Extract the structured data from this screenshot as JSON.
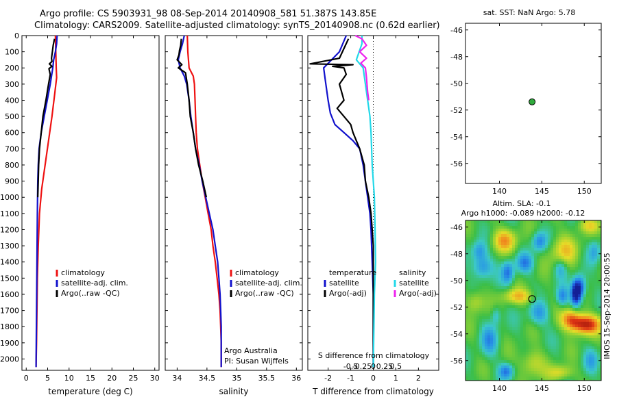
{
  "title": {
    "line1": "Argo profile: CS 5903931_98 08-Sep-2014 20140908_581 51.387S 143.85E",
    "line2": "Climatology: CARS2009. Satellite-adjusted climatology: synTS_20140908.nc (0.62d earlier)"
  },
  "colors": {
    "climatology": "#ee1111",
    "satellite": "#1111cc",
    "argo": "#000000",
    "satellite_salinity": "#22d8e8",
    "argo_salinity": "#ee22ee",
    "marker_fill": "#2faa3c"
  },
  "chart_data": [
    {
      "type": "line",
      "name": "temperature-panel",
      "xlabel": "temperature (deg C)",
      "ylabel": "",
      "xlim": [
        -1,
        31
      ],
      "ylim": [
        2070,
        0
      ],
      "xticks": [
        0,
        5,
        10,
        15,
        20,
        25,
        30
      ],
      "yticks": [
        0,
        100,
        200,
        300,
        400,
        500,
        600,
        700,
        800,
        900,
        1000,
        1100,
        1200,
        1300,
        1400,
        1500,
        1600,
        1700,
        1800,
        1900,
        2000
      ],
      "legend": [
        "climatology",
        "satellite-adj. clim.",
        "Argo(..raw -QC)"
      ],
      "series": [
        {
          "name": "climatology",
          "color_key": "climatology",
          "points": [
            [
              6.8,
              0
            ],
            [
              6.9,
              100
            ],
            [
              7.0,
              200
            ],
            [
              7.1,
              260
            ],
            [
              6.7,
              350
            ],
            [
              6.0,
              500
            ],
            [
              5.2,
              650
            ],
            [
              4.4,
              800
            ],
            [
              3.6,
              950
            ],
            [
              3.1,
              1100
            ],
            [
              2.8,
              1300
            ],
            [
              2.6,
              1500
            ],
            [
              2.5,
              1700
            ],
            [
              2.4,
              1900
            ],
            [
              2.3,
              2050
            ]
          ]
        },
        {
          "name": "satellite-adj. clim.",
          "color_key": "satellite",
          "points": [
            [
              7.2,
              0
            ],
            [
              7.1,
              50
            ],
            [
              6.8,
              100
            ],
            [
              6.4,
              150
            ],
            [
              6.2,
              200
            ],
            [
              5.6,
              300
            ],
            [
              4.9,
              400
            ],
            [
              4.2,
              500
            ],
            [
              3.5,
              600
            ],
            [
              3.0,
              700
            ],
            [
              2.8,
              800
            ],
            [
              2.7,
              900
            ],
            [
              2.6,
              1100
            ],
            [
              2.5,
              1400
            ],
            [
              2.4,
              1700
            ],
            [
              2.3,
              2050
            ]
          ]
        },
        {
          "name": "Argo(..raw -QC)",
          "color_key": "argo",
          "points": [
            [
              6.6,
              20
            ],
            [
              6.3,
              60
            ],
            [
              6.1,
              100
            ],
            [
              5.9,
              140
            ],
            [
              6.0,
              160
            ],
            [
              5.4,
              175
            ],
            [
              6.0,
              190
            ],
            [
              5.3,
              205
            ],
            [
              5.6,
              240
            ],
            [
              5.2,
              300
            ],
            [
              4.6,
              400
            ],
            [
              3.9,
              500
            ],
            [
              3.5,
              600
            ],
            [
              3.1,
              700
            ],
            [
              2.9,
              800
            ],
            [
              2.8,
              900
            ],
            [
              2.7,
              1000
            ]
          ]
        }
      ]
    },
    {
      "type": "line",
      "name": "salinity-panel",
      "xlabel": "salinity",
      "ylabel": "",
      "xlim": [
        33.8,
        36.1
      ],
      "ylim": [
        2070,
        0
      ],
      "xticks": [
        34,
        34.5,
        35,
        35.5,
        36
      ],
      "legend": [
        "climatology",
        "satellite-adj. clim.",
        "Argo(..raw -QC)"
      ],
      "annotation": [
        "Argo Australia",
        "PI: Susan Wijffels"
      ],
      "series": [
        {
          "name": "climatology",
          "color_key": "climatology",
          "points": [
            [
              34.17,
              0
            ],
            [
              34.18,
              100
            ],
            [
              34.2,
              200
            ],
            [
              34.27,
              250
            ],
            [
              34.29,
              300
            ],
            [
              34.3,
              400
            ],
            [
              34.31,
              500
            ],
            [
              34.32,
              600
            ],
            [
              34.34,
              700
            ],
            [
              34.38,
              800
            ],
            [
              34.42,
              900
            ],
            [
              34.47,
              1000
            ],
            [
              34.52,
              1100
            ],
            [
              34.57,
              1200
            ],
            [
              34.6,
              1300
            ],
            [
              34.64,
              1400
            ],
            [
              34.67,
              1500
            ],
            [
              34.7,
              1600
            ],
            [
              34.72,
              1700
            ],
            [
              34.73,
              1800
            ],
            [
              34.74,
              1900
            ],
            [
              34.74,
              2050
            ]
          ]
        },
        {
          "name": "satellite-adj. clim.",
          "color_key": "satellite",
          "points": [
            [
              34.12,
              0
            ],
            [
              34.09,
              50
            ],
            [
              34.05,
              100
            ],
            [
              34.02,
              150
            ],
            [
              34.05,
              200
            ],
            [
              34.12,
              250
            ],
            [
              34.16,
              300
            ],
            [
              34.2,
              400
            ],
            [
              34.23,
              500
            ],
            [
              34.27,
              600
            ],
            [
              34.31,
              700
            ],
            [
              34.37,
              800
            ],
            [
              34.42,
              900
            ],
            [
              34.48,
              1000
            ],
            [
              34.54,
              1100
            ],
            [
              34.6,
              1200
            ],
            [
              34.64,
              1300
            ],
            [
              34.68,
              1400
            ],
            [
              34.7,
              1500
            ],
            [
              34.72,
              1600
            ],
            [
              34.73,
              1700
            ],
            [
              34.74,
              1800
            ],
            [
              34.74,
              1900
            ],
            [
              34.74,
              2050
            ]
          ]
        },
        {
          "name": "Argo(..raw -QC)",
          "color_key": "argo",
          "points": [
            [
              34.07,
              20
            ],
            [
              34.06,
              60
            ],
            [
              34.04,
              90
            ],
            [
              34.03,
              120
            ],
            [
              34.0,
              150
            ],
            [
              34.08,
              180
            ],
            [
              34.02,
              200
            ],
            [
              34.14,
              230
            ],
            [
              34.17,
              300
            ],
            [
              34.2,
              400
            ],
            [
              34.22,
              500
            ],
            [
              34.27,
              600
            ],
            [
              34.31,
              700
            ],
            [
              34.36,
              800
            ],
            [
              34.43,
              900
            ],
            [
              34.49,
              1000
            ]
          ]
        }
      ]
    },
    {
      "type": "line",
      "name": "difference-panel",
      "xlabel": "T difference from climatology",
      "xlabel2": "S difference from climatology",
      "xlim": [
        -2.9,
        2.9
      ],
      "ylim": [
        2070,
        0
      ],
      "xticks": [
        -2,
        -1,
        0,
        1,
        2
      ],
      "xticks2_values": [
        -0.5,
        -0.25,
        0,
        0.25,
        0.5
      ],
      "xticks2_labels": [
        "-0.5",
        "-0.25",
        "0",
        "0.25",
        "0.5"
      ],
      "legend_headers": [
        "temperature",
        "salinity"
      ],
      "legend": [
        "satellite",
        "Argo(-adj)",
        "satellite",
        "Argo(-adj)"
      ],
      "series": [
        {
          "name": "satellite",
          "group": "temperature",
          "color_key": "satellite",
          "points": [
            [
              -1.2,
              0
            ],
            [
              -1.5,
              100
            ],
            [
              -2.2,
              200
            ],
            [
              -2.1,
              300
            ],
            [
              -2.0,
              400
            ],
            [
              -1.9,
              480
            ],
            [
              -1.7,
              550
            ],
            [
              -1.3,
              600
            ],
            [
              -0.9,
              650
            ],
            [
              -0.6,
              700
            ],
            [
              -0.45,
              800
            ],
            [
              -0.25,
              1000
            ],
            [
              -0.15,
              1100
            ],
            [
              -0.1,
              1200
            ],
            [
              -0.05,
              1400
            ],
            [
              0,
              1600
            ],
            [
              0,
              2050
            ]
          ]
        },
        {
          "name": "Argo(-adj)",
          "group": "temperature",
          "color_key": "argo",
          "points": [
            [
              -1.1,
              20
            ],
            [
              -1.3,
              80
            ],
            [
              -1.5,
              140
            ],
            [
              -2.8,
              175
            ],
            [
              -0.9,
              180
            ],
            [
              -1.8,
              190
            ],
            [
              -1.3,
              200
            ],
            [
              -1.2,
              240
            ],
            [
              -1.5,
              300
            ],
            [
              -1.3,
              400
            ],
            [
              -1.6,
              450
            ],
            [
              -1.3,
              500
            ],
            [
              -1.0,
              550
            ],
            [
              -0.9,
              600
            ],
            [
              -0.6,
              700
            ],
            [
              -0.4,
              800
            ],
            [
              -0.35,
              900
            ],
            [
              -0.2,
              1000
            ],
            [
              -0.1,
              1100
            ],
            [
              -0.05,
              1200
            ],
            [
              0,
              1300
            ],
            [
              0,
              2050
            ]
          ]
        },
        {
          "name": "satellite",
          "group": "salinity",
          "color_key": "satellite_salinity",
          "points": [
            [
              -0.5,
              0
            ],
            [
              -0.5,
              50
            ],
            [
              -0.75,
              150
            ],
            [
              -0.45,
              200
            ],
            [
              -0.35,
              300
            ],
            [
              -0.25,
              400
            ],
            [
              -0.15,
              500
            ],
            [
              -0.1,
              600
            ],
            [
              -0.05,
              800
            ],
            [
              0.05,
              1000
            ],
            [
              0.08,
              1200
            ],
            [
              0.1,
              1400
            ],
            [
              0.05,
              1600
            ],
            [
              0,
              2050
            ]
          ]
        },
        {
          "name": "Argo(-adj)",
          "group": "salinity",
          "color_key": "argo_salinity",
          "points": [
            [
              -0.8,
              0
            ],
            [
              -0.5,
              20
            ],
            [
              -0.3,
              60
            ],
            [
              -0.6,
              100
            ],
            [
              -0.3,
              140
            ],
            [
              -0.55,
              170
            ],
            [
              -0.35,
              200
            ],
            [
              -0.3,
              260
            ],
            [
              -0.28,
              300
            ],
            [
              -0.25,
              350
            ],
            [
              -0.2,
              400
            ]
          ]
        }
      ]
    },
    {
      "type": "scatter",
      "name": "location-map",
      "title": "sat. SST: NaN Argo: 5.78",
      "xlim": [
        136,
        152
      ],
      "ylim": [
        -57.5,
        -45.5
      ],
      "xticks": [
        140,
        145,
        150
      ],
      "yticks": [
        -46,
        -48,
        -50,
        -52,
        -54,
        -56
      ],
      "points": [
        {
          "x": 143.85,
          "y": -51.387
        }
      ]
    },
    {
      "type": "heatmap",
      "name": "sla-map",
      "title": "Altim. SLA: -0.1",
      "subtitle": "Argo h1000: -0.089 h2000: -0.12",
      "side_label": "IMOS 15-Sep-2014 20:00:55",
      "xlim": [
        136,
        152
      ],
      "ylim": [
        -57.5,
        -45.5
      ],
      "xticks": [
        140,
        145,
        150
      ],
      "yticks": [
        -46,
        -48,
        -50,
        -52,
        -54,
        -56
      ],
      "marker": {
        "x": 143.85,
        "y": -51.387
      },
      "features": [
        {
          "x": 138.0,
          "y": -49.0,
          "amp": -0.5,
          "sx": 0.8,
          "sy": 0.6
        },
        {
          "x": 137.6,
          "y": -47.8,
          "amp": -0.4,
          "sx": 0.6,
          "sy": 0.5
        },
        {
          "x": 140.6,
          "y": -47.0,
          "amp": 0.55,
          "sx": 1.0,
          "sy": 0.6
        },
        {
          "x": 141.0,
          "y": -49.4,
          "amp": -0.55,
          "sx": 0.5,
          "sy": 0.6
        },
        {
          "x": 142.2,
          "y": -51.2,
          "amp": 0.45,
          "sx": 1.3,
          "sy": 0.4
        },
        {
          "x": 143.0,
          "y": -48.7,
          "amp": -0.45,
          "sx": 0.7,
          "sy": 0.5
        },
        {
          "x": 144.7,
          "y": -47.1,
          "amp": -0.5,
          "sx": 0.6,
          "sy": 0.5
        },
        {
          "x": 144.6,
          "y": -52.5,
          "amp": -0.4,
          "sx": 0.8,
          "sy": 0.6
        },
        {
          "x": 147.6,
          "y": -47.8,
          "amp": 0.4,
          "sx": 1.2,
          "sy": 0.8
        },
        {
          "x": 147.2,
          "y": -49.1,
          "amp": -0.3,
          "sx": 0.5,
          "sy": 0.5
        },
        {
          "x": 147.4,
          "y": -51.2,
          "amp": -0.5,
          "sx": 0.5,
          "sy": 0.5
        },
        {
          "x": 149.0,
          "y": -51.0,
          "amp": -1.0,
          "sx": 0.4,
          "sy": 0.6
        },
        {
          "x": 149.5,
          "y": -50.5,
          "amp": -0.7,
          "sx": 0.5,
          "sy": 0.6
        },
        {
          "x": 150.0,
          "y": -53.3,
          "amp": 1.0,
          "sx": 1.3,
          "sy": 0.5
        },
        {
          "x": 148.4,
          "y": -52.8,
          "amp": 0.55,
          "sx": 0.8,
          "sy": 0.5
        },
        {
          "x": 138.8,
          "y": -54.5,
          "amp": -0.4,
          "sx": 0.7,
          "sy": 0.8
        },
        {
          "x": 137.2,
          "y": -51.6,
          "amp": 0.35,
          "sx": 0.8,
          "sy": 0.6
        },
        {
          "x": 140.8,
          "y": -56.8,
          "amp": -0.5,
          "sx": 0.6,
          "sy": 0.4
        },
        {
          "x": 143.8,
          "y": -56.2,
          "amp": 0.35,
          "sx": 1.0,
          "sy": 0.7
        },
        {
          "x": 147.2,
          "y": -56.9,
          "amp": 0.4,
          "sx": 1.0,
          "sy": 0.4
        },
        {
          "x": 150.8,
          "y": -56.0,
          "amp": -0.3,
          "sx": 0.6,
          "sy": 0.6
        },
        {
          "x": 139.6,
          "y": -52.6,
          "amp": -0.3,
          "sx": 0.4,
          "sy": 0.5
        },
        {
          "x": 151.2,
          "y": -47.8,
          "amp": -0.35,
          "sx": 0.5,
          "sy": 0.6
        },
        {
          "x": 150.5,
          "y": -45.9,
          "amp": 0.35,
          "sx": 1.0,
          "sy": 0.4
        }
      ]
    }
  ]
}
